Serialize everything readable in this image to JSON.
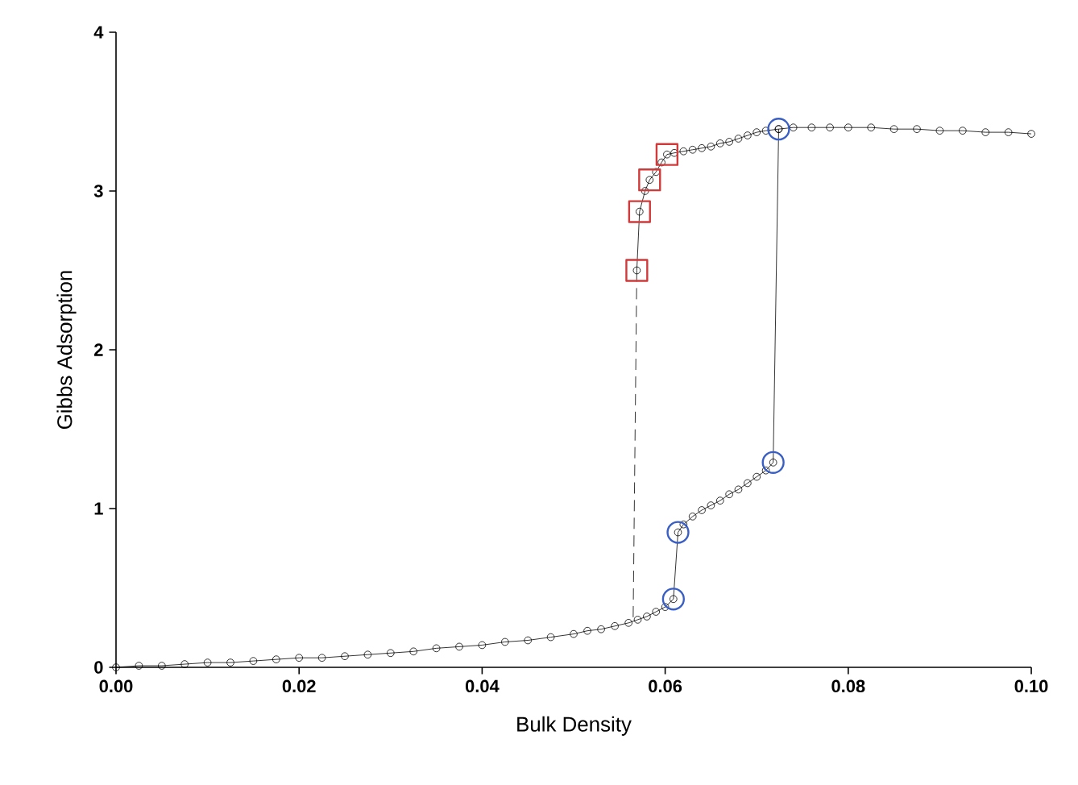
{
  "chart_data": {
    "type": "line",
    "xlabel": "Bulk Density",
    "ylabel": "Gibbs Adsorption",
    "xlim": [
      0,
      0.1
    ],
    "ylim": [
      0,
      4
    ],
    "xticks": [
      {
        "value": 0,
        "label": "0.00"
      },
      {
        "value": 0.02,
        "label": "0.02"
      },
      {
        "value": 0.04,
        "label": "0.04"
      },
      {
        "value": 0.06,
        "label": "0.06"
      },
      {
        "value": 0.08,
        "label": "0.08"
      },
      {
        "value": 0.1,
        "label": "0.10"
      }
    ],
    "yticks": [
      0,
      1,
      2,
      3,
      4
    ],
    "grid": false,
    "series": [
      {
        "color": "#000000",
        "marker": "circle",
        "line_style": "solid",
        "x": [
          0,
          0.0025,
          0.005,
          0.0075,
          0.01,
          0.0125,
          0.015,
          0.0175,
          0.02,
          0.0225,
          0.025,
          0.0275,
          0.03,
          0.0325,
          0.035,
          0.0375,
          0.04,
          0.0425,
          0.045,
          0.0475,
          0.05,
          0.0515,
          0.053,
          0.0545,
          0.056,
          0.057,
          0.058,
          0.059,
          0.06,
          0.0609,
          0.0614,
          0.062,
          0.063,
          0.064,
          0.065,
          0.066,
          0.067,
          0.068,
          0.069,
          0.07,
          0.071,
          0.0718,
          0.0724,
          0.074,
          0.076,
          0.078,
          0.08,
          0.0825,
          0.085,
          0.0875,
          0.09,
          0.0925,
          0.095,
          0.0975,
          0.1
        ],
        "values": [
          0,
          0.01,
          0.01,
          0.02,
          0.03,
          0.03,
          0.04,
          0.05,
          0.06,
          0.06,
          0.07,
          0.08,
          0.09,
          0.1,
          0.12,
          0.13,
          0.14,
          0.16,
          0.17,
          0.19,
          0.21,
          0.23,
          0.24,
          0.26,
          0.28,
          0.3,
          0.32,
          0.35,
          0.38,
          0.43,
          0.85,
          0.9,
          0.95,
          0.99,
          1.02,
          1.05,
          1.09,
          1.12,
          1.16,
          1.2,
          1.24,
          1.29,
          3.39,
          3.4,
          3.4,
          3.4,
          3.4,
          3.4,
          3.39,
          3.39,
          3.38,
          3.38,
          3.37,
          3.37,
          3.36
        ]
      },
      {
        "color": "#000000",
        "marker": "circle",
        "line_style": "solid",
        "x": [
          0.0569,
          0.0572,
          0.0578,
          0.0583,
          0.059,
          0.0596,
          0.0602,
          0.061,
          0.062,
          0.063,
          0.064,
          0.065,
          0.066,
          0.067,
          0.068,
          0.069,
          0.07,
          0.071,
          0.0724
        ],
        "values": [
          2.5,
          2.87,
          3.0,
          3.07,
          3.12,
          3.18,
          3.23,
          3.24,
          3.25,
          3.26,
          3.27,
          3.28,
          3.3,
          3.31,
          3.33,
          3.35,
          3.37,
          3.38,
          3.39
        ]
      },
      {
        "color": "#000000",
        "marker": "none",
        "line_style": "dashed",
        "x": [
          0.0569,
          0.0565
        ],
        "values": [
          2.5,
          0.3
        ]
      },
      {
        "type": "scatter",
        "color": "#3a5fc4",
        "marker": "circle",
        "x": [
          0.0609,
          0.0614,
          0.0718,
          0.0724
        ],
        "values": [
          0.43,
          0.85,
          1.29,
          3.39
        ]
      },
      {
        "type": "scatter",
        "color": "#d03a3a",
        "marker": "square",
        "x": [
          0.0569,
          0.0572,
          0.0583,
          0.0602
        ],
        "values": [
          2.5,
          2.87,
          3.07,
          3.23
        ]
      }
    ]
  }
}
